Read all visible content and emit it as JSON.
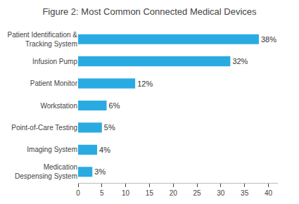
{
  "chart_data": {
    "type": "bar",
    "title": "Figure 2: Most Common Connected Medical Devices",
    "categories": [
      "Patient Identification &\nTracking System",
      "Infusion Pump",
      "Patient Monitor",
      "Workstation",
      "Point-of-Care Testing",
      "Imaging System",
      "Medication\nDespensing System"
    ],
    "values": [
      38,
      32,
      12,
      6,
      5,
      4,
      3
    ],
    "value_labels": [
      "38%",
      "32%",
      "12%",
      "6%",
      "5%",
      "4%",
      "3%"
    ],
    "color": "#29abe2",
    "orientation": "horizontal",
    "data_labels": true,
    "xlim": [
      0,
      42
    ],
    "xticks": [
      0,
      5,
      10,
      15,
      20,
      25,
      30,
      35,
      40
    ],
    "grid": false
  }
}
